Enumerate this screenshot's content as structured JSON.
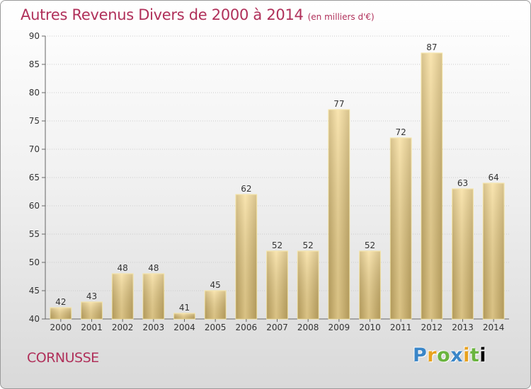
{
  "title": "Autres Revenus Divers de 2000 à 2014",
  "unit_note": "(en milliers d'€)",
  "location": "CORNUSSE",
  "logo": {
    "letters": [
      "P",
      "r",
      "o",
      "x",
      "i",
      "t",
      "i"
    ],
    "text": "Proxiti"
  },
  "colors": {
    "title": "#b0305a",
    "bar_light": "#f7dc96",
    "bar_dark": "#c9ad66",
    "bar_edge": "#f5e29a",
    "grid": "#cccccc"
  },
  "chart_data": {
    "type": "bar",
    "title": "Autres Revenus Divers de 2000 à 2014",
    "categories": [
      "2000",
      "2001",
      "2002",
      "2003",
      "2004",
      "2005",
      "2006",
      "2007",
      "2008",
      "2009",
      "2010",
      "2011",
      "2012",
      "2013",
      "2014"
    ],
    "values": [
      42,
      43,
      48,
      48,
      41,
      45,
      62,
      52,
      52,
      77,
      52,
      72,
      87,
      63,
      64
    ],
    "ylim": [
      40,
      90
    ],
    "yticks": [
      40,
      45,
      50,
      55,
      60,
      65,
      70,
      75,
      80,
      85,
      90
    ],
    "grid": true,
    "data_labels": true
  }
}
